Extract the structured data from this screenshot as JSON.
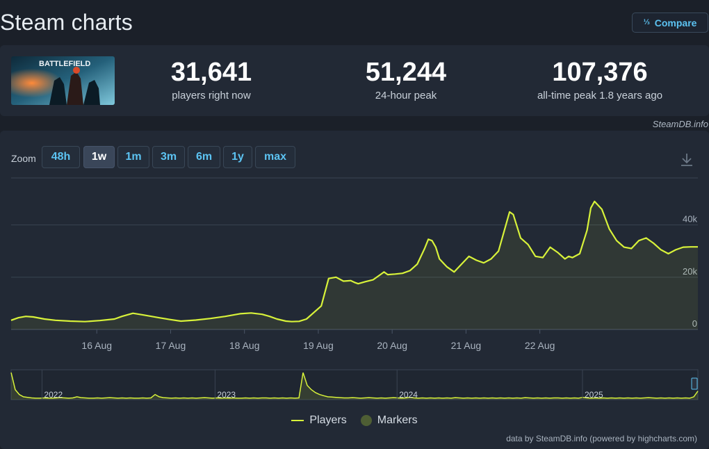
{
  "header": {
    "title": "Steam charts",
    "compare_label": "Compare",
    "compare_icon": "fraction-icon"
  },
  "stats": [
    {
      "value": "31,641",
      "label": "players right now"
    },
    {
      "value": "51,244",
      "label": "24-hour peak"
    },
    {
      "value": "107,376",
      "label": "all-time peak 1.8 years ago"
    }
  ],
  "thumb_text": "BATTLEFIELD",
  "credit_top": "SteamDB.info",
  "zoom": {
    "label": "Zoom",
    "options": [
      "48h",
      "1w",
      "1m",
      "3m",
      "6m",
      "1y",
      "max"
    ],
    "active": "1w"
  },
  "legend": {
    "players": "Players",
    "markers": "Markers"
  },
  "credit_bottom": "data by SteamDB.info (powered by highcharts.com)",
  "colors": {
    "line": "#d8f23a",
    "bg": "#222935",
    "accent": "#5cc3f2",
    "marker": "#4e5e34"
  },
  "chart_data": {
    "type": "area",
    "x_start": "15 Aug 12:00",
    "x_end": "22 Aug 21:00",
    "x_tick_labels": [
      "16 Aug",
      "17 Aug",
      "18 Aug",
      "19 Aug",
      "20 Aug",
      "21 Aug",
      "22 Aug"
    ],
    "y_tick_labels": [
      "0",
      "20k",
      "40k"
    ],
    "ylim": [
      0,
      58000
    ],
    "series": [
      {
        "name": "Players",
        "x_days": [
          0,
          0.1,
          0.2,
          0.3,
          0.45,
          0.6,
          0.8,
          1.0,
          1.2,
          1.4,
          1.5,
          1.65,
          1.8,
          2.0,
          2.15,
          2.3,
          2.5,
          2.7,
          2.9,
          3.1,
          3.25,
          3.4,
          3.5,
          3.6,
          3.72,
          3.8,
          3.9,
          4.0,
          4.2,
          4.3,
          4.4,
          4.5,
          4.55,
          4.6,
          4.65,
          4.7,
          4.8,
          4.9,
          5.0,
          5.05,
          5.1,
          5.2,
          5.3,
          5.4,
          5.5,
          5.6,
          5.65,
          5.7,
          5.75,
          5.8,
          5.9,
          6.0,
          6.1,
          6.2,
          6.3,
          6.4,
          6.5,
          6.6,
          6.65,
          6.7,
          6.75,
          6.8,
          6.9,
          7.0,
          7.1,
          7.2,
          7.3,
          7.4,
          7.5,
          7.55,
          7.6,
          7.7,
          7.8,
          7.85,
          7.9,
          8.0,
          8.1,
          8.2,
          8.3,
          8.4,
          8.5,
          8.6,
          8.7,
          8.8,
          8.9,
          9.0,
          9.1,
          9.2,
          9.3
        ],
        "values": [
          3500,
          4500,
          5000,
          4800,
          4000,
          3500,
          3200,
          3000,
          3400,
          4000,
          5000,
          6200,
          5500,
          4500,
          3800,
          3200,
          3600,
          4200,
          5000,
          6000,
          6300,
          5800,
          5000,
          4000,
          3200,
          3000,
          3100,
          4000,
          9000,
          19500,
          20000,
          18500,
          18600,
          18700,
          18000,
          17500,
          18300,
          19000,
          21000,
          22000,
          21000,
          21200,
          21500,
          22500,
          25000,
          31000,
          34500,
          34000,
          31500,
          27000,
          24000,
          22000,
          25000,
          28000,
          26500,
          25500,
          27000,
          30000,
          35000,
          40000,
          45000,
          44000,
          35000,
          32500,
          28000,
          27500,
          31500,
          29500,
          27000,
          28000,
          27500,
          29000,
          38000,
          46500,
          49000,
          46000,
          38500,
          34000,
          31500,
          31000,
          34000,
          35000,
          33000,
          30500,
          29000,
          30500,
          31500,
          31600,
          31600
        ]
      }
    ],
    "navigator": {
      "x_labels": [
        "2022",
        "2023",
        "2024",
        "2025"
      ],
      "values": [
        0.95,
        0.35,
        0.18,
        0.1,
        0.08,
        0.06,
        0.05,
        0.05,
        0.06,
        0.05,
        0.05,
        0.06,
        0.07,
        0.06,
        0.05,
        0.06,
        0.1,
        0.07,
        0.06,
        0.05,
        0.05,
        0.06,
        0.05,
        0.06,
        0.07,
        0.06,
        0.05,
        0.06,
        0.05,
        0.06,
        0.05,
        0.05,
        0.06,
        0.05,
        0.06,
        0.18,
        0.1,
        0.07,
        0.06,
        0.05,
        0.06,
        0.05,
        0.06,
        0.05,
        0.06,
        0.05,
        0.06,
        0.07,
        0.06,
        0.05,
        0.06,
        0.05,
        0.06,
        0.05,
        0.06,
        0.05,
        0.05,
        0.06,
        0.05,
        0.06,
        0.05,
        0.06,
        0.06,
        0.05,
        0.06,
        0.05,
        0.06,
        0.05,
        0.06,
        0.05,
        0.06,
        0.95,
        0.5,
        0.35,
        0.25,
        0.18,
        0.14,
        0.1,
        0.09,
        0.08,
        0.07,
        0.06,
        0.06,
        0.07,
        0.06,
        0.05,
        0.06,
        0.07,
        0.06,
        0.05,
        0.06,
        0.05,
        0.06,
        0.07,
        0.06,
        0.05,
        0.06,
        0.08,
        0.06,
        0.05,
        0.06,
        0.05,
        0.06,
        0.05,
        0.06,
        0.05,
        0.06,
        0.05,
        0.07,
        0.06,
        0.05,
        0.06,
        0.05,
        0.06,
        0.05,
        0.06,
        0.05,
        0.06,
        0.05,
        0.06,
        0.05,
        0.06,
        0.05,
        0.06,
        0.05,
        0.07,
        0.06,
        0.05,
        0.06,
        0.05,
        0.06,
        0.05,
        0.06,
        0.06,
        0.05,
        0.06,
        0.05,
        0.06,
        0.05,
        0.08,
        0.06,
        0.05,
        0.06,
        0.05,
        0.06,
        0.05,
        0.06,
        0.05,
        0.06,
        0.05,
        0.06,
        0.05,
        0.06,
        0.05,
        0.06,
        0.07,
        0.06,
        0.05,
        0.06,
        0.05,
        0.06,
        0.05,
        0.06,
        0.05,
        0.06,
        0.05,
        0.1,
        0.3
      ]
    }
  }
}
